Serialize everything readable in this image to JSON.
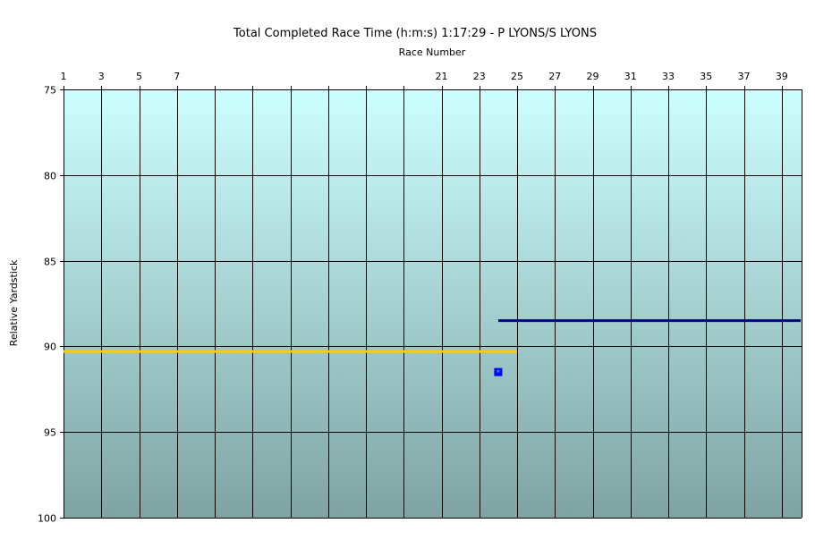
{
  "chart_data": {
    "type": "line",
    "title": "Total Completed Race Time (h:m:s) 1:17:29 -  P LYONS/S LYONS",
    "xlabel": "Race Number",
    "ylabel": "Relative Yardstick",
    "xlim": [
      1,
      40
    ],
    "ylim": [
      75,
      100
    ],
    "y_reversed": true,
    "x_axis_position": "top",
    "x_tick_labels": [
      "1",
      "3",
      "5",
      "7",
      "21",
      "23",
      "25",
      "27",
      "29",
      "31",
      "33",
      "35",
      "37",
      "39"
    ],
    "x_gridlines": [
      1,
      3,
      5,
      7,
      9,
      11,
      13,
      15,
      17,
      19,
      21,
      23,
      25,
      27,
      29,
      31,
      33,
      35,
      37,
      39
    ],
    "y_ticks": [
      75,
      80,
      85,
      90,
      95,
      100
    ],
    "grid": true,
    "background_gradient": [
      "#ccffff",
      "#7fa3a3"
    ],
    "series": [
      {
        "color": "#ffcc00",
        "type": "line",
        "x": [
          1,
          25
        ],
        "y": [
          90.3,
          90.3
        ]
      },
      {
        "color": "#000080",
        "type": "line",
        "x": [
          24,
          40
        ],
        "y": [
          88.5,
          88.5
        ]
      },
      {
        "color": "#0000ff",
        "type": "marker",
        "x": [
          24
        ],
        "y": [
          91.5
        ]
      }
    ]
  }
}
